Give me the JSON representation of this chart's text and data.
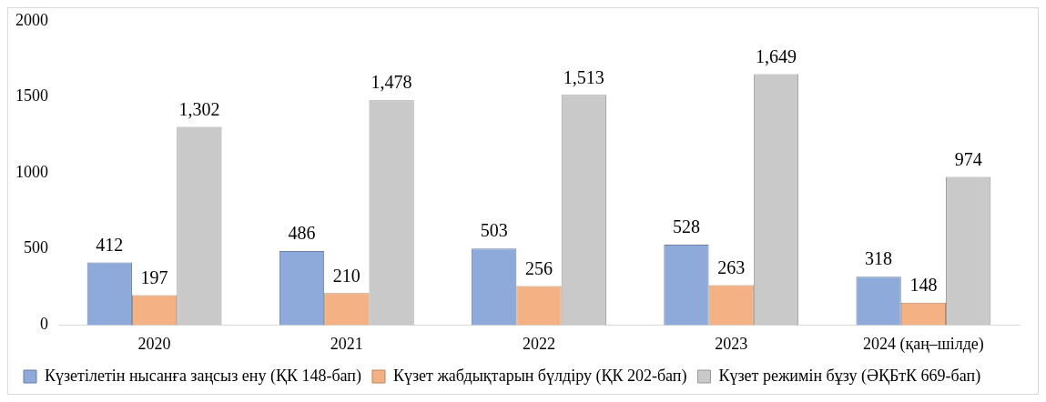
{
  "chart_data": {
    "type": "bar",
    "categories": [
      "2020",
      "2021",
      "2022",
      "2023",
      "2024 (қаң–шілде)"
    ],
    "series": [
      {
        "name": "Күзетілетін нысанға заңсыз ену (ҚК 148-бап)",
        "color": "#8eaadb",
        "values": [
          412,
          486,
          503,
          528,
          318
        ],
        "value_labels": [
          "412",
          "486",
          "503",
          "528",
          "318"
        ]
      },
      {
        "name": "Күзет жабдықтарын бүлдіру (ҚК 202-бап)",
        "color": "#f4b183",
        "values": [
          197,
          210,
          256,
          263,
          148
        ],
        "value_labels": [
          "197",
          "210",
          "256",
          "263",
          "148"
        ]
      },
      {
        "name": "Күзет режимін бұзу (ӘҚБтК 669-бап)",
        "color": "#c9c9c9",
        "values": [
          1302,
          1478,
          1513,
          1649,
          974
        ],
        "value_labels": [
          "1,302",
          "1,478",
          "1,513",
          "1,649",
          "974"
        ]
      }
    ],
    "ylim": [
      0,
      2000
    ],
    "yticks": [
      0,
      500,
      1000,
      1500,
      2000
    ],
    "grid": false,
    "legend": "bottom"
  }
}
